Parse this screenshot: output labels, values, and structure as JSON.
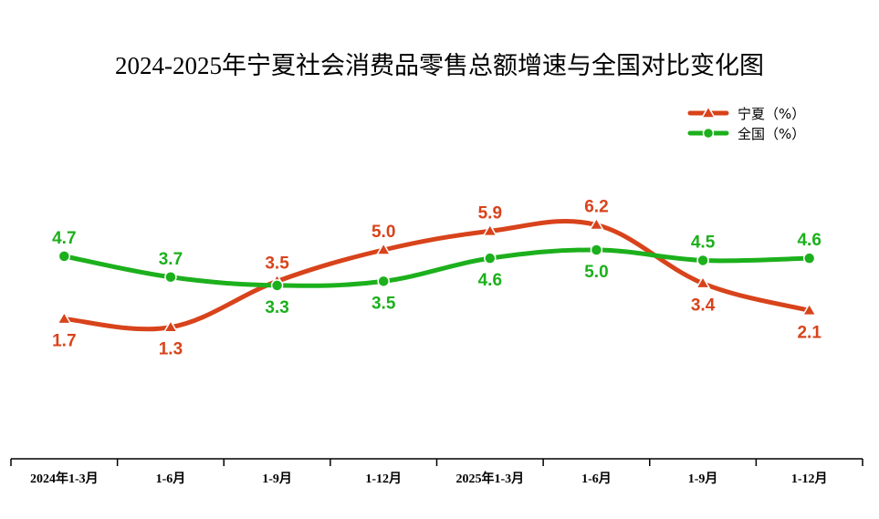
{
  "chart_data": {
    "type": "line",
    "title": "2024-2025年宁夏社会消费品零售总额增速与全国对比变化图",
    "categories": [
      "2024年1-3月",
      "1-6月",
      "1-9月",
      "1-12月",
      "2025年1-3月",
      "1-6月",
      "1-9月",
      "1-12月"
    ],
    "series": [
      {
        "name": "宁夏（%）",
        "values": [
          1.7,
          1.3,
          3.5,
          5.0,
          5.9,
          6.2,
          3.4,
          2.1
        ],
        "color": "#D8431B",
        "marker": "triangle",
        "label_pos": [
          "below",
          "below",
          "above",
          "above",
          "above",
          "above",
          "below",
          "below"
        ]
      },
      {
        "name": "全国（%）",
        "values": [
          4.7,
          3.7,
          3.3,
          3.5,
          4.6,
          5.0,
          4.5,
          4.6
        ],
        "color": "#1CB01C",
        "marker": "circle",
        "label_pos": [
          "above",
          "above",
          "below",
          "below",
          "below",
          "below",
          "above",
          "above"
        ]
      }
    ],
    "ylim": [
      -5,
      10
    ],
    "grid": false,
    "legend": "top-right",
    "smooth": true,
    "y_axis_visible": false
  }
}
